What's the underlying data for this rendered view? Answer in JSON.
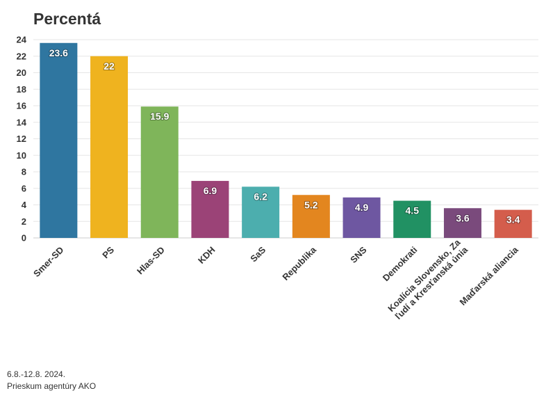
{
  "chart_data": {
    "type": "bar",
    "title": "Percentá",
    "categories": [
      "Smer-SD",
      "PS",
      "Hlas-SD",
      "KDH",
      "SaS",
      "Republika",
      "SNS",
      "Demokrati",
      "Koalícia Slovensko, Za ľudí a Kresťanská únia",
      "Maďarská aliancia"
    ],
    "category_lines": [
      [
        "Smer-SD"
      ],
      [
        "PS"
      ],
      [
        "Hlas-SD"
      ],
      [
        "KDH"
      ],
      [
        "SaS"
      ],
      [
        "Republika"
      ],
      [
        "SNS"
      ],
      [
        "Demokrati"
      ],
      [
        "Koalícia Slovensko, Za",
        "ľudí a Kresťanská únia"
      ],
      [
        "Maďarská aliancia"
      ]
    ],
    "values": [
      23.6,
      22,
      15.9,
      6.9,
      6.2,
      5.2,
      4.9,
      4.5,
      3.6,
      3.4
    ],
    "value_labels": [
      "23.6",
      "22",
      "15.9",
      "6.9",
      "6.2",
      "5.2",
      "4.9",
      "4.5",
      "3.6",
      "3.4"
    ],
    "colors": [
      "#2f76a0",
      "#efb31f",
      "#7fb55a",
      "#9b4377",
      "#4caeae",
      "#e3861f",
      "#6e57a1",
      "#219163",
      "#7a4a7c",
      "#d45d4c"
    ],
    "ylim": [
      0,
      24
    ],
    "yticks": [
      0,
      2,
      4,
      6,
      8,
      10,
      12,
      14,
      16,
      18,
      20,
      22,
      24
    ],
    "xlabel": "",
    "ylabel": "",
    "grid": true
  },
  "footer": {
    "line1": "6.8.-12.8. 2024.",
    "line2": "Prieskum agentúry AKO"
  }
}
